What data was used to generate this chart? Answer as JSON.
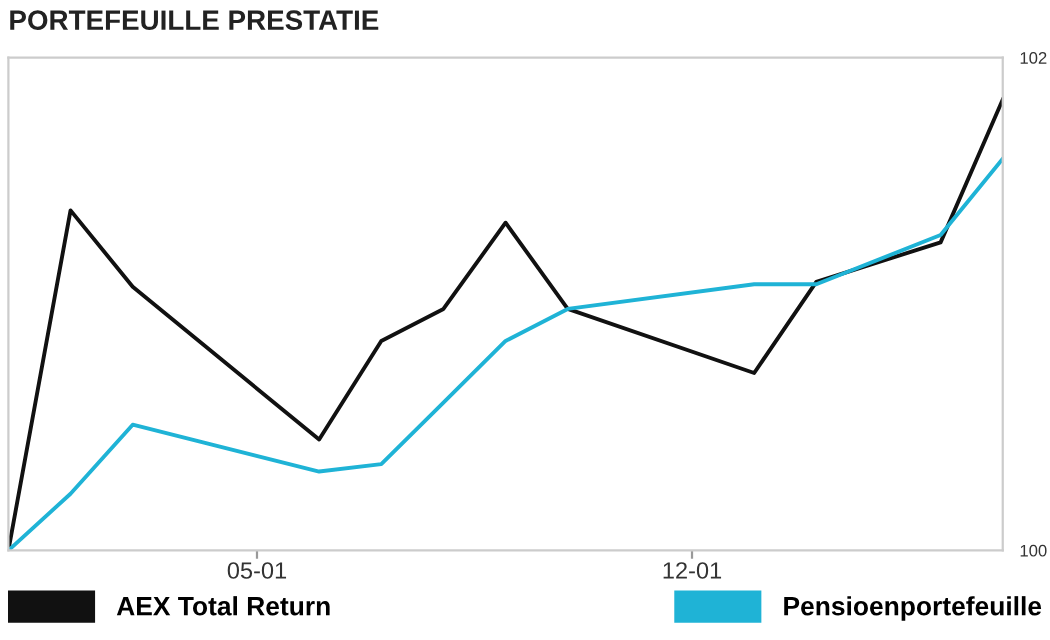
{
  "chart_data": {
    "type": "line",
    "title": "PORTEFEUILLE PRESTATIE",
    "x": [
      "--01-01",
      "--01-02",
      "--01-03",
      "--01-06",
      "--01-07",
      "--01-08",
      "--01-09",
      "--01-10",
      "--01-13",
      "--01-14",
      "--01-16",
      "--01-17"
    ],
    "series": [
      {
        "name": "AEX Total Return",
        "color": "#111111",
        "values": [
          100,
          101.38,
          101.07,
          100.45,
          100.85,
          100.98,
          101.33,
          100.98,
          100.72,
          101.09,
          101.25,
          101.83
        ]
      },
      {
        "name": "Pensioenportefeuille",
        "color": "#1fb3d6",
        "values": [
          100,
          100.23,
          100.51,
          100.32,
          100.35,
          100.6,
          100.85,
          100.98,
          101.08,
          101.08,
          101.28,
          101.59
        ]
      }
    ],
    "xlim": [
      "--01-01",
      "--01-17"
    ],
    "xticks": [
      {
        "value": "--01-05",
        "label": "05-01"
      },
      {
        "value": "--01-12",
        "label": "12-01"
      }
    ],
    "ylim": [
      100,
      102
    ],
    "yticks": [
      100,
      102
    ],
    "grid": false,
    "legend": "bottom",
    "marker": "none",
    "line_style": "solid"
  }
}
